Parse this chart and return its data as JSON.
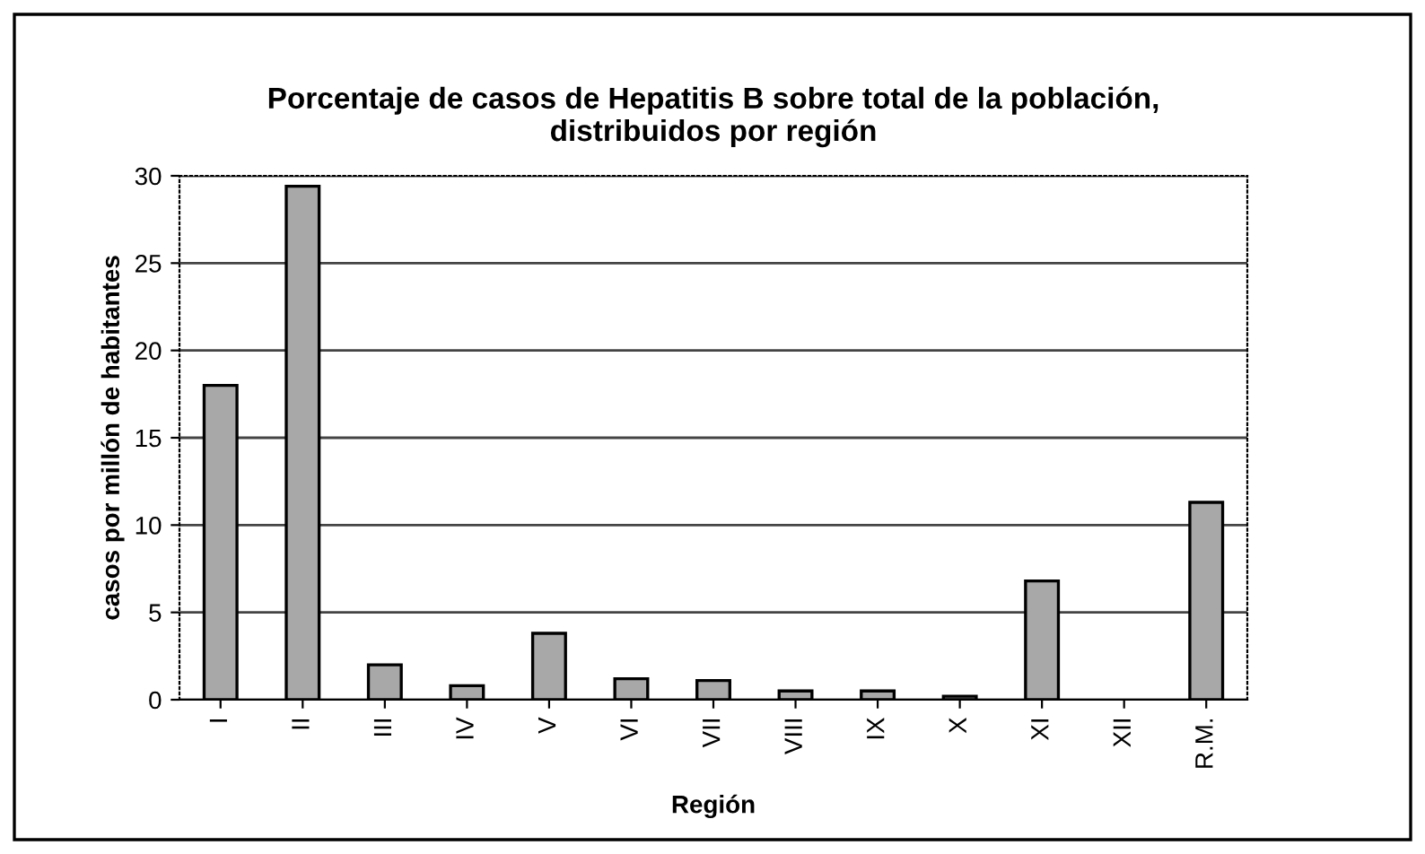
{
  "chart_data": {
    "type": "bar",
    "title": "Porcentaje de casos de Hepatitis B sobre total de la población,\ndistribuidos por región",
    "xlabel": "Región",
    "ylabel": "casos por millón de habitantes",
    "categories": [
      "I",
      "II",
      "III",
      "IV",
      "V",
      "VI",
      "VII",
      "VIII",
      "IX",
      "X",
      "XI",
      "XII",
      "R.M."
    ],
    "values": [
      18.0,
      29.4,
      2.0,
      0.8,
      3.8,
      1.2,
      1.1,
      0.5,
      0.5,
      0.2,
      6.8,
      0,
      11.3
    ],
    "color": "#a8a8a8",
    "ylim": [
      0,
      30
    ],
    "yticks": [
      0,
      5,
      10,
      15,
      20,
      25,
      30
    ],
    "grid": "y",
    "legend": false
  }
}
